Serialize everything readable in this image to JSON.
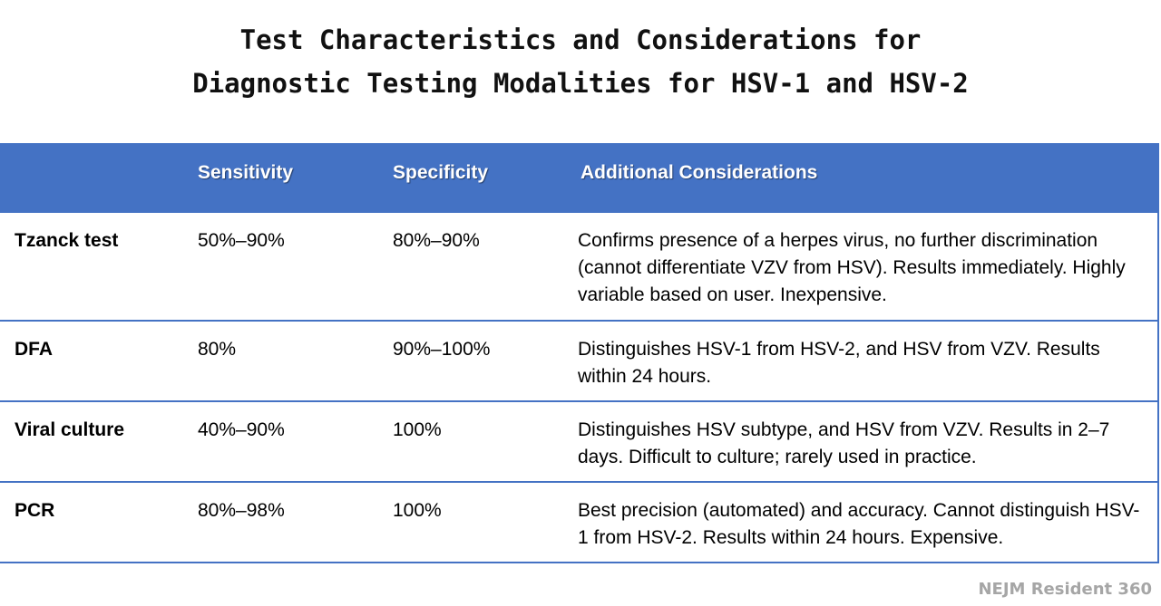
{
  "title": {
    "line1": "Test Characteristics and Considerations for",
    "line2": "Diagnostic Testing Modalities for HSV-1 and HSV-2"
  },
  "table": {
    "headers": [
      "",
      "Sensitivity",
      "Specificity",
      "Additional Considerations"
    ],
    "rows": [
      {
        "test": "Tzanck test",
        "sensitivity": "50%–90%",
        "specificity": "80%–90%",
        "considerations": "Confirms presence of a herpes virus, no further discrimination (cannot differentiate VZV from HSV). Results immediately. Highly variable based on user. Inexpensive."
      },
      {
        "test": "DFA",
        "sensitivity": "80%",
        "specificity": "90%–100%",
        "considerations": "Distinguishes HSV-1 from HSV-2, and HSV from VZV. Results within 24 hours."
      },
      {
        "test": "Viral culture",
        "sensitivity": "40%–90%",
        "specificity": "100%",
        "considerations": "Distinguishes HSV subtype, and HSV from VZV. Results in 2–7 days. Difficult to culture; rarely used in practice."
      },
      {
        "test": "PCR",
        "sensitivity": "80%–98%",
        "specificity": "100%",
        "considerations": "Best precision (automated) and accuracy. Cannot distinguish HSV-1 from HSV-2. Results within 24 hours. Expensive."
      }
    ]
  },
  "footer": {
    "brand": "NEJM Resident 360"
  },
  "colors": {
    "header_bg": "#4472c4",
    "footer_text": "#a6a6a6"
  }
}
